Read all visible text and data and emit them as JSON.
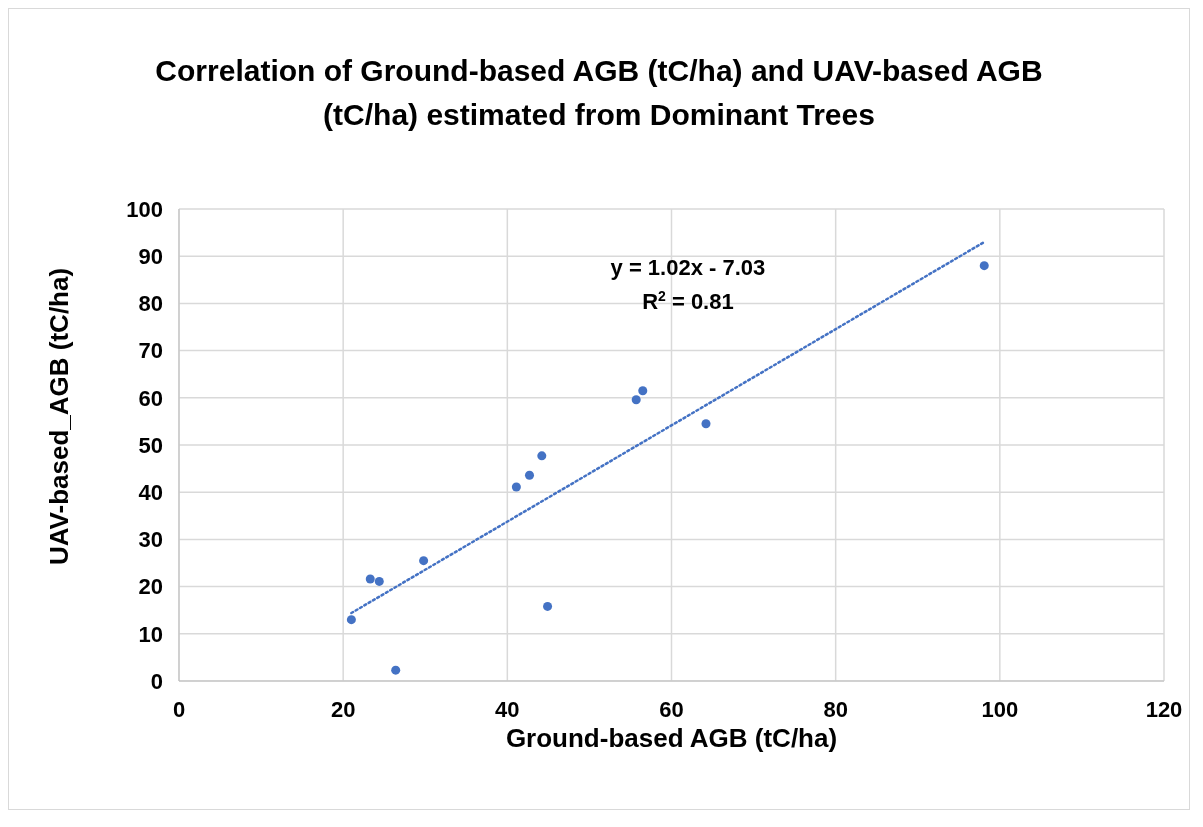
{
  "chart_data": {
    "type": "scatter",
    "title": "Correlation  of Ground-based AGB (tC/ha) and UAV-based AGB (tC/ha) estimated from Dominant Trees",
    "xlabel": "Ground-based AGB (tC/ha)",
    "ylabel": "UAV-based_AGB (tC/ha)",
    "xlim": [
      0,
      120
    ],
    "xticks": [
      0,
      20,
      40,
      60,
      80,
      100,
      120
    ],
    "ylim": [
      0,
      100
    ],
    "yticks": [
      0,
      10,
      20,
      30,
      40,
      50,
      60,
      70,
      80,
      90,
      100
    ],
    "grid": true,
    "series": [
      {
        "type": "scatter",
        "color": "#4472c4",
        "marker": "circle",
        "x": [
          21.0,
          23.3,
          24.4,
          26.4,
          29.8,
          41.1,
          42.7,
          44.2,
          44.9,
          55.7,
          56.5,
          64.2,
          98.1
        ],
        "values": [
          13.0,
          21.6,
          21.1,
          2.3,
          25.5,
          41.1,
          43.6,
          47.7,
          15.8,
          59.6,
          61.5,
          54.5,
          88.0
        ]
      },
      {
        "type": "line",
        "color": "#4472c4",
        "line_style": "dotted",
        "x": [
          21.0,
          98.1
        ],
        "values": [
          14.4,
          93.0
        ]
      }
    ],
    "annotations": [
      "y = 1.02x - 7.03\nR$^{2}$ = 0.81"
    ]
  }
}
